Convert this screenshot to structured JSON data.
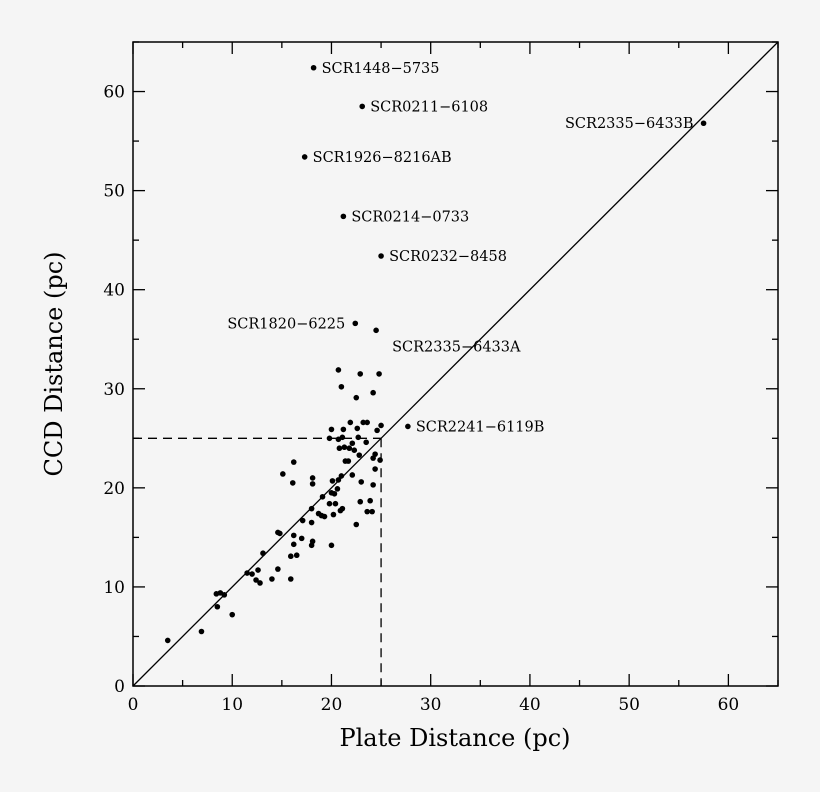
{
  "chart_data": {
    "type": "scatter",
    "title": "",
    "xlabel": "Plate Distance (pc)",
    "ylabel": "CCD Distance (pc)",
    "xlim": [
      0,
      65
    ],
    "ylim": [
      0,
      65
    ],
    "x_ticks": [
      0,
      10,
      20,
      30,
      40,
      50,
      60
    ],
    "y_ticks": [
      0,
      10,
      20,
      30,
      40,
      50,
      60
    ],
    "minor_tick_step": 5,
    "grid": false,
    "reference_line": {
      "type": "y=x",
      "style": "solid"
    },
    "threshold_lines": {
      "x": 25,
      "y": 25,
      "style": "dashed"
    },
    "labeled_points": [
      {
        "label": "SCR1448−5735",
        "x": 18.2,
        "y": 62.4,
        "anchor": "right"
      },
      {
        "label": "SCR0211−6108",
        "x": 23.1,
        "y": 58.5,
        "anchor": "right"
      },
      {
        "label": "SCR2335−6433B",
        "x": 57.5,
        "y": 56.8,
        "anchor": "left"
      },
      {
        "label": "SCR1926−8216AB",
        "x": 17.3,
        "y": 53.4,
        "anchor": "right"
      },
      {
        "label": "SCR0214−0733",
        "x": 21.2,
        "y": 47.4,
        "anchor": "right"
      },
      {
        "label": "SCR0232−8458",
        "x": 25.0,
        "y": 43.4,
        "anchor": "right"
      },
      {
        "label": "SCR1820−6225",
        "x": 22.4,
        "y": 36.6,
        "anchor": "left"
      },
      {
        "label": "SCR2335−6433A",
        "x": 24.5,
        "y": 35.9,
        "anchor": "below-right"
      },
      {
        "label": "SCR2241−6119B",
        "x": 27.7,
        "y": 26.2,
        "anchor": "right"
      }
    ],
    "points": [
      [
        20.7,
        31.9
      ],
      [
        22.9,
        31.5
      ],
      [
        24.8,
        31.5
      ],
      [
        21.0,
        30.2
      ],
      [
        24.2,
        29.6
      ],
      [
        22.5,
        29.1
      ],
      [
        21.9,
        26.6
      ],
      [
        23.2,
        26.6
      ],
      [
        23.6,
        26.6
      ],
      [
        25.0,
        26.3
      ],
      [
        20.0,
        25.9
      ],
      [
        21.2,
        25.9
      ],
      [
        22.6,
        26.0
      ],
      [
        24.6,
        25.8
      ],
      [
        19.8,
        25.0
      ],
      [
        20.7,
        24.9
      ],
      [
        21.1,
        25.1
      ],
      [
        22.1,
        24.5
      ],
      [
        22.7,
        25.1
      ],
      [
        23.5,
        24.6
      ],
      [
        20.8,
        24.0
      ],
      [
        21.3,
        24.1
      ],
      [
        21.8,
        24.0
      ],
      [
        22.3,
        23.8
      ],
      [
        22.8,
        23.3
      ],
      [
        24.2,
        23.0
      ],
      [
        24.4,
        23.4
      ],
      [
        24.9,
        22.8
      ],
      [
        21.4,
        22.7
      ],
      [
        21.7,
        22.7
      ],
      [
        16.2,
        22.6
      ],
      [
        15.1,
        21.4
      ],
      [
        16.1,
        20.5
      ],
      [
        18.1,
        21.0
      ],
      [
        18.1,
        20.4
      ],
      [
        21.0,
        21.2
      ],
      [
        22.1,
        21.3
      ],
      [
        24.4,
        21.9
      ],
      [
        20.1,
        20.7
      ],
      [
        20.7,
        20.8
      ],
      [
        23.0,
        20.6
      ],
      [
        24.2,
        20.3
      ],
      [
        20.6,
        19.9
      ],
      [
        20.0,
        19.5
      ],
      [
        20.3,
        19.4
      ],
      [
        19.1,
        19.1
      ],
      [
        18.0,
        17.9
      ],
      [
        19.8,
        18.4
      ],
      [
        20.4,
        18.4
      ],
      [
        21.1,
        17.9
      ],
      [
        20.9,
        17.7
      ],
      [
        22.9,
        18.6
      ],
      [
        23.9,
        18.7
      ],
      [
        23.6,
        17.6
      ],
      [
        24.1,
        17.6
      ],
      [
        18.7,
        17.4
      ],
      [
        19.0,
        17.2
      ],
      [
        19.3,
        17.1
      ],
      [
        20.2,
        17.3
      ],
      [
        17.1,
        16.7
      ],
      [
        18.0,
        16.5
      ],
      [
        22.5,
        16.3
      ],
      [
        14.6,
        15.5
      ],
      [
        14.8,
        15.4
      ],
      [
        16.2,
        15.2
      ],
      [
        17.0,
        14.9
      ],
      [
        16.2,
        14.3
      ],
      [
        18.1,
        14.6
      ],
      [
        18.0,
        14.2
      ],
      [
        20.0,
        14.2
      ],
      [
        13.1,
        13.4
      ],
      [
        15.9,
        13.1
      ],
      [
        16.5,
        13.2
      ],
      [
        11.5,
        11.4
      ],
      [
        12.0,
        11.3
      ],
      [
        12.6,
        11.7
      ],
      [
        12.4,
        10.7
      ],
      [
        12.8,
        10.4
      ],
      [
        14.0,
        10.8
      ],
      [
        14.6,
        11.8
      ],
      [
        15.9,
        10.8
      ],
      [
        8.4,
        9.3
      ],
      [
        8.8,
        9.4
      ],
      [
        9.2,
        9.2
      ],
      [
        8.5,
        8.0
      ],
      [
        10.0,
        7.2
      ],
      [
        6.9,
        5.5
      ],
      [
        3.5,
        4.6
      ]
    ]
  }
}
